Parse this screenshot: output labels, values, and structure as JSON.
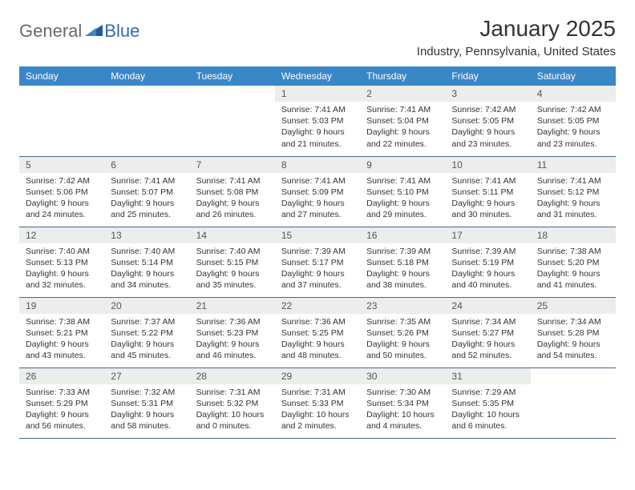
{
  "logo": {
    "text_general": "General",
    "text_blue": "Blue"
  },
  "title": "January 2025",
  "location": "Industry, Pennsylvania, United States",
  "colors": {
    "header_bg": "#3a87c8",
    "header_text": "#ffffff",
    "daynum_bg": "#eceded",
    "cell_border": "#4a6a8a",
    "logo_gray": "#6a6a6a",
    "logo_blue": "#2d6ca8",
    "logo_triangle": "#1f5a99"
  },
  "day_headers": [
    "Sunday",
    "Monday",
    "Tuesday",
    "Wednesday",
    "Thursday",
    "Friday",
    "Saturday"
  ],
  "weeks": [
    [
      {
        "n": "",
        "sunrise": "",
        "sunset": "",
        "daylight1": "",
        "daylight2": "",
        "empty": true
      },
      {
        "n": "",
        "sunrise": "",
        "sunset": "",
        "daylight1": "",
        "daylight2": "",
        "empty": true
      },
      {
        "n": "",
        "sunrise": "",
        "sunset": "",
        "daylight1": "",
        "daylight2": "",
        "empty": true
      },
      {
        "n": "1",
        "sunrise": "Sunrise: 7:41 AM",
        "sunset": "Sunset: 5:03 PM",
        "daylight1": "Daylight: 9 hours",
        "daylight2": "and 21 minutes."
      },
      {
        "n": "2",
        "sunrise": "Sunrise: 7:41 AM",
        "sunset": "Sunset: 5:04 PM",
        "daylight1": "Daylight: 9 hours",
        "daylight2": "and 22 minutes."
      },
      {
        "n": "3",
        "sunrise": "Sunrise: 7:42 AM",
        "sunset": "Sunset: 5:05 PM",
        "daylight1": "Daylight: 9 hours",
        "daylight2": "and 23 minutes."
      },
      {
        "n": "4",
        "sunrise": "Sunrise: 7:42 AM",
        "sunset": "Sunset: 5:05 PM",
        "daylight1": "Daylight: 9 hours",
        "daylight2": "and 23 minutes."
      }
    ],
    [
      {
        "n": "5",
        "sunrise": "Sunrise: 7:42 AM",
        "sunset": "Sunset: 5:06 PM",
        "daylight1": "Daylight: 9 hours",
        "daylight2": "and 24 minutes."
      },
      {
        "n": "6",
        "sunrise": "Sunrise: 7:41 AM",
        "sunset": "Sunset: 5:07 PM",
        "daylight1": "Daylight: 9 hours",
        "daylight2": "and 25 minutes."
      },
      {
        "n": "7",
        "sunrise": "Sunrise: 7:41 AM",
        "sunset": "Sunset: 5:08 PM",
        "daylight1": "Daylight: 9 hours",
        "daylight2": "and 26 minutes."
      },
      {
        "n": "8",
        "sunrise": "Sunrise: 7:41 AM",
        "sunset": "Sunset: 5:09 PM",
        "daylight1": "Daylight: 9 hours",
        "daylight2": "and 27 minutes."
      },
      {
        "n": "9",
        "sunrise": "Sunrise: 7:41 AM",
        "sunset": "Sunset: 5:10 PM",
        "daylight1": "Daylight: 9 hours",
        "daylight2": "and 29 minutes."
      },
      {
        "n": "10",
        "sunrise": "Sunrise: 7:41 AM",
        "sunset": "Sunset: 5:11 PM",
        "daylight1": "Daylight: 9 hours",
        "daylight2": "and 30 minutes."
      },
      {
        "n": "11",
        "sunrise": "Sunrise: 7:41 AM",
        "sunset": "Sunset: 5:12 PM",
        "daylight1": "Daylight: 9 hours",
        "daylight2": "and 31 minutes."
      }
    ],
    [
      {
        "n": "12",
        "sunrise": "Sunrise: 7:40 AM",
        "sunset": "Sunset: 5:13 PM",
        "daylight1": "Daylight: 9 hours",
        "daylight2": "and 32 minutes."
      },
      {
        "n": "13",
        "sunrise": "Sunrise: 7:40 AM",
        "sunset": "Sunset: 5:14 PM",
        "daylight1": "Daylight: 9 hours",
        "daylight2": "and 34 minutes."
      },
      {
        "n": "14",
        "sunrise": "Sunrise: 7:40 AM",
        "sunset": "Sunset: 5:15 PM",
        "daylight1": "Daylight: 9 hours",
        "daylight2": "and 35 minutes."
      },
      {
        "n": "15",
        "sunrise": "Sunrise: 7:39 AM",
        "sunset": "Sunset: 5:17 PM",
        "daylight1": "Daylight: 9 hours",
        "daylight2": "and 37 minutes."
      },
      {
        "n": "16",
        "sunrise": "Sunrise: 7:39 AM",
        "sunset": "Sunset: 5:18 PM",
        "daylight1": "Daylight: 9 hours",
        "daylight2": "and 38 minutes."
      },
      {
        "n": "17",
        "sunrise": "Sunrise: 7:39 AM",
        "sunset": "Sunset: 5:19 PM",
        "daylight1": "Daylight: 9 hours",
        "daylight2": "and 40 minutes."
      },
      {
        "n": "18",
        "sunrise": "Sunrise: 7:38 AM",
        "sunset": "Sunset: 5:20 PM",
        "daylight1": "Daylight: 9 hours",
        "daylight2": "and 41 minutes."
      }
    ],
    [
      {
        "n": "19",
        "sunrise": "Sunrise: 7:38 AM",
        "sunset": "Sunset: 5:21 PM",
        "daylight1": "Daylight: 9 hours",
        "daylight2": "and 43 minutes."
      },
      {
        "n": "20",
        "sunrise": "Sunrise: 7:37 AM",
        "sunset": "Sunset: 5:22 PM",
        "daylight1": "Daylight: 9 hours",
        "daylight2": "and 45 minutes."
      },
      {
        "n": "21",
        "sunrise": "Sunrise: 7:36 AM",
        "sunset": "Sunset: 5:23 PM",
        "daylight1": "Daylight: 9 hours",
        "daylight2": "and 46 minutes."
      },
      {
        "n": "22",
        "sunrise": "Sunrise: 7:36 AM",
        "sunset": "Sunset: 5:25 PM",
        "daylight1": "Daylight: 9 hours",
        "daylight2": "and 48 minutes."
      },
      {
        "n": "23",
        "sunrise": "Sunrise: 7:35 AM",
        "sunset": "Sunset: 5:26 PM",
        "daylight1": "Daylight: 9 hours",
        "daylight2": "and 50 minutes."
      },
      {
        "n": "24",
        "sunrise": "Sunrise: 7:34 AM",
        "sunset": "Sunset: 5:27 PM",
        "daylight1": "Daylight: 9 hours",
        "daylight2": "and 52 minutes."
      },
      {
        "n": "25",
        "sunrise": "Sunrise: 7:34 AM",
        "sunset": "Sunset: 5:28 PM",
        "daylight1": "Daylight: 9 hours",
        "daylight2": "and 54 minutes."
      }
    ],
    [
      {
        "n": "26",
        "sunrise": "Sunrise: 7:33 AM",
        "sunset": "Sunset: 5:29 PM",
        "daylight1": "Daylight: 9 hours",
        "daylight2": "and 56 minutes."
      },
      {
        "n": "27",
        "sunrise": "Sunrise: 7:32 AM",
        "sunset": "Sunset: 5:31 PM",
        "daylight1": "Daylight: 9 hours",
        "daylight2": "and 58 minutes."
      },
      {
        "n": "28",
        "sunrise": "Sunrise: 7:31 AM",
        "sunset": "Sunset: 5:32 PM",
        "daylight1": "Daylight: 10 hours",
        "daylight2": "and 0 minutes."
      },
      {
        "n": "29",
        "sunrise": "Sunrise: 7:31 AM",
        "sunset": "Sunset: 5:33 PM",
        "daylight1": "Daylight: 10 hours",
        "daylight2": "and 2 minutes."
      },
      {
        "n": "30",
        "sunrise": "Sunrise: 7:30 AM",
        "sunset": "Sunset: 5:34 PM",
        "daylight1": "Daylight: 10 hours",
        "daylight2": "and 4 minutes."
      },
      {
        "n": "31",
        "sunrise": "Sunrise: 7:29 AM",
        "sunset": "Sunset: 5:35 PM",
        "daylight1": "Daylight: 10 hours",
        "daylight2": "and 6 minutes."
      },
      {
        "n": "",
        "sunrise": "",
        "sunset": "",
        "daylight1": "",
        "daylight2": "",
        "empty": true
      }
    ]
  ]
}
